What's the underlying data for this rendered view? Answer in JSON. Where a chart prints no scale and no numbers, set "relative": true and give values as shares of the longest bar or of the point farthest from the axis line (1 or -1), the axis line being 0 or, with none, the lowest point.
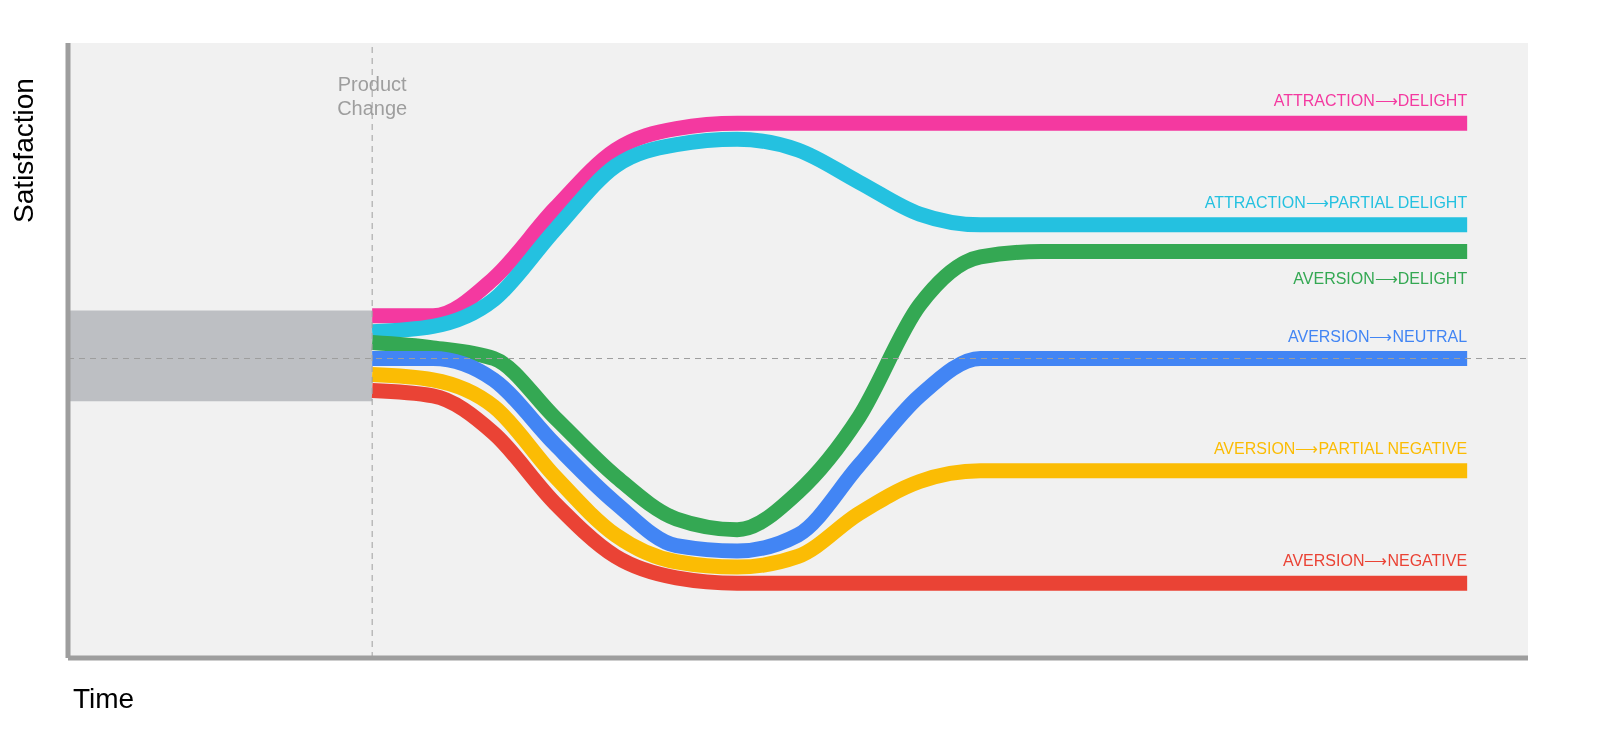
{
  "chart_data": {
    "type": "line",
    "relative": true,
    "xlabel": "Time",
    "ylabel": "Satisfaction",
    "categories": [
      null,
      null,
      null,
      null,
      null,
      null,
      null,
      null,
      null,
      null,
      null,
      null,
      null,
      null,
      null,
      null,
      null,
      null,
      null,
      null,
      null,
      null,
      null,
      null,
      null
    ],
    "grid": false,
    "marker": "none",
    "line_style": "solid",
    "annotations": [
      "Product Change"
    ],
    "ref_lines": [
      {
        "axis": "y",
        "value": 0.56,
        "color": "#9e9e9e",
        "line_style": "dashed"
      }
    ],
    "series": [
      {
        "type": "area",
        "color": "#bdbfc3",
        "values": [
          null,
          null,
          null,
          null,
          null,
          null,
          null,
          null,
          null,
          null,
          null,
          null,
          null,
          null,
          null,
          null,
          null,
          null,
          null,
          null,
          null,
          null,
          null,
          null,
          null
        ],
        "lower": [
          0.48,
          0.48,
          0.48,
          0.48,
          0.48,
          0.48,
          null,
          null,
          null,
          null,
          null,
          null,
          null,
          null,
          null,
          null,
          null,
          null,
          null,
          null,
          null,
          null,
          null,
          null,
          null
        ],
        "upper": [
          0.65,
          0.65,
          0.65,
          0.65,
          0.65,
          0.65,
          null,
          null,
          null,
          null,
          null,
          null,
          null,
          null,
          null,
          null,
          null,
          null,
          null,
          null,
          null,
          null,
          null,
          null,
          null
        ]
      },
      {
        "name": "ATTRACTION⟶DELIGHT",
        "color": "#f439a0",
        "values": [
          null,
          null,
          null,
          null,
          null,
          0.64,
          0.64,
          0.71,
          0.84,
          0.95,
          0.99,
          1,
          1,
          1,
          1,
          1,
          1,
          1,
          1,
          1,
          1,
          1,
          1,
          1,
          null
        ]
      },
      {
        "name": "ATTRACTION⟶PARTIAL DELIGHT",
        "color": "#24c1e0",
        "values": [
          null,
          null,
          null,
          null,
          null,
          0.61,
          0.62,
          0.67,
          0.8,
          0.92,
          0.96,
          0.97,
          0.95,
          0.89,
          0.83,
          0.81,
          0.81,
          0.81,
          0.81,
          0.81,
          0.81,
          0.81,
          0.81,
          0.81,
          null
        ]
      },
      {
        "name": "AVERSION⟶DELIGHT",
        "color": "#34a853",
        "values": [
          null,
          null,
          null,
          null,
          null,
          0.59,
          0.58,
          0.56,
          0.45,
          0.34,
          0.26,
          0.24,
          0.31,
          0.45,
          0.66,
          0.75,
          0.76,
          0.76,
          0.76,
          0.76,
          0.76,
          0.76,
          0.76,
          0.76,
          null
        ]
      },
      {
        "name": "AVERSION⟶NEUTRAL",
        "color": "#4285f4",
        "values": [
          null,
          null,
          null,
          null,
          null,
          0.56,
          0.56,
          0.52,
          0.4,
          0.29,
          0.21,
          0.2,
          0.23,
          0.36,
          0.49,
          0.56,
          0.56,
          0.56,
          0.56,
          0.56,
          0.56,
          0.56,
          0.56,
          0.56,
          null
        ]
      },
      {
        "name": "AVERSION⟶PARTIAL NEGATIVE",
        "color": "#fbbc04",
        "values": [
          null,
          null,
          null,
          null,
          null,
          0.53,
          0.52,
          0.47,
          0.34,
          0.23,
          0.18,
          0.17,
          0.19,
          0.27,
          0.33,
          0.35,
          0.35,
          0.35,
          0.35,
          0.35,
          0.35,
          0.35,
          0.35,
          0.35,
          null
        ]
      },
      {
        "name": "AVERSION⟶NEGATIVE",
        "color": "#ea4335",
        "values": [
          null,
          null,
          null,
          null,
          null,
          0.5,
          0.49,
          0.42,
          0.29,
          0.19,
          0.15,
          0.14,
          0.14,
          0.14,
          0.14,
          0.14,
          0.14,
          0.14,
          0.14,
          0.14,
          0.14,
          0.14,
          0.14,
          0.14,
          null
        ]
      }
    ]
  }
}
